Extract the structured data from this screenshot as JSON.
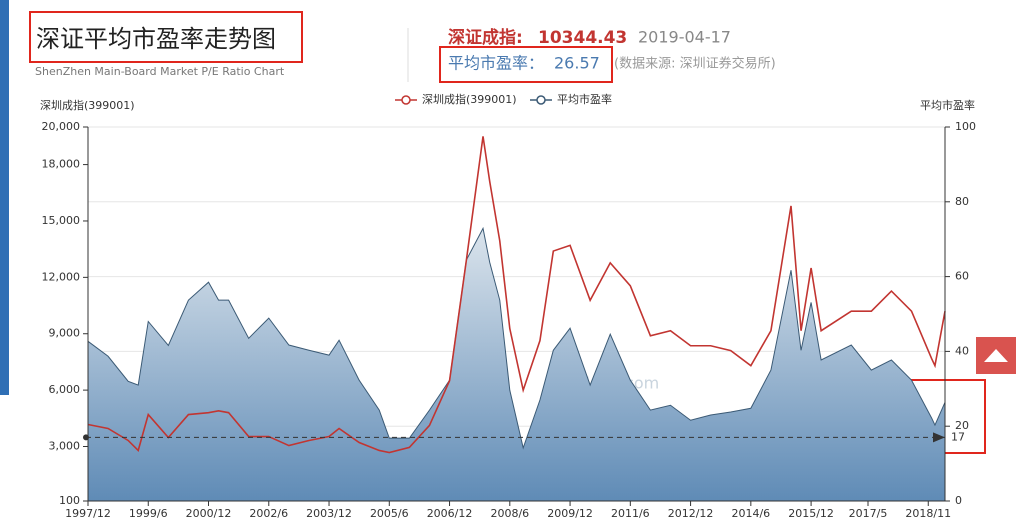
{
  "header": {
    "title": "深证平均市盈率走势图",
    "subtitle": "ShenZhen Main-Board Market P/E Ratio Chart",
    "index_label": "深证成指:",
    "index_value": 10344.43,
    "date": "2019-04-17",
    "pe_label": "平均市盈率：",
    "pe_value": 26.57,
    "source": "(数据来源: 深圳证券交易所)",
    "watermark": "legulegu.com"
  },
  "chart_data": {
    "type": "line-area-dual",
    "ylabel": "深圳成指(399001)",
    "y2label": "平均市盈率",
    "x": [
      "1997/12",
      "1998/6",
      "1998/12",
      "1999/3",
      "1999/6",
      "1999/12",
      "2000/6",
      "2000/12",
      "2001/3",
      "2001/6",
      "2001/12",
      "2002/6",
      "2002/12",
      "2003/6",
      "2003/12",
      "2004/3",
      "2004/9",
      "2005/3",
      "2005/6",
      "2005/12",
      "2006/6",
      "2006/12",
      "2007/5",
      "2007/10",
      "2007/12",
      "2008/3",
      "2008/6",
      "2008/10",
      "2009/3",
      "2009/7",
      "2009/12",
      "2010/6",
      "2010/12",
      "2011/6",
      "2011/12",
      "2012/6",
      "2012/12",
      "2013/6",
      "2013/12",
      "2014/6",
      "2014/12",
      "2015/6",
      "2015/9",
      "2015/12",
      "2016/3",
      "2016/12",
      "2017/6",
      "2017/12",
      "2018/6",
      "2018/12",
      "2019/1",
      "2019/4"
    ],
    "series": [
      {
        "name": "深圳成指(399001)",
        "color": "#c23531",
        "values": [
          4170,
          3960,
          3320,
          2790,
          4700,
          3480,
          4700,
          4800,
          4900,
          4800,
          3530,
          3530,
          3050,
          3320,
          3530,
          3960,
          3210,
          2790,
          2680,
          2950,
          4120,
          6500,
          12880,
          19500,
          17100,
          13940,
          9270,
          6000,
          8630,
          13400,
          13700,
          10780,
          12770,
          11550,
          8890,
          9160,
          8360,
          8360,
          8100,
          7300,
          9160,
          15800,
          9160,
          12500,
          9160,
          10200,
          10200,
          11270,
          10200,
          7680,
          7300,
          10200
        ]
      },
      {
        "name": "平均市盈率",
        "color": "#3b5a75",
        "axis": "y2",
        "values": [
          42.7,
          38.7,
          32,
          31,
          48,
          41.6,
          53.7,
          58.5,
          53.7,
          53.7,
          43.5,
          48.9,
          41.7,
          40.3,
          39,
          43,
          32.3,
          24.3,
          16.8,
          16.8,
          24.3,
          32.3,
          64.4,
          72.9,
          63.8,
          53.7,
          29.6,
          14.2,
          27,
          40.3,
          46.2,
          31,
          44.6,
          32.3,
          24.3,
          25.6,
          21.6,
          23,
          23.8,
          24.8,
          35,
          61.7,
          40.3,
          53.1,
          37.7,
          41.7,
          35,
          37.7,
          32.3,
          22.2,
          20.3,
          26.4
        ]
      }
    ],
    "xticks": [
      "1997/12",
      "1999/6",
      "2000/12",
      "2002/6",
      "2003/12",
      "2005/6",
      "2006/12",
      "2008/6",
      "2009/12",
      "2011/6",
      "2012/12",
      "2014/6",
      "2015/12",
      "2017/5",
      "2018/11"
    ],
    "xlim": [
      "1997/12",
      "2019/4"
    ],
    "ylim": [
      100,
      20000
    ],
    "yticks": [
      100,
      {
        "value": 3000,
        "label": "3,000"
      },
      {
        "value": 6000,
        "label": "6,000"
      },
      {
        "value": 9000,
        "label": "9,000"
      },
      {
        "value": 12000,
        "label": "12,000"
      },
      {
        "value": 15000,
        "label": "15,000"
      },
      {
        "value": 18000,
        "label": "18,000"
      },
      {
        "value": 20000,
        "label": "20,000"
      }
    ],
    "y2lim": [
      0,
      100
    ],
    "y2ticks": [
      0,
      20,
      40,
      60,
      80,
      100
    ],
    "mark_line": 17,
    "grid": true
  }
}
